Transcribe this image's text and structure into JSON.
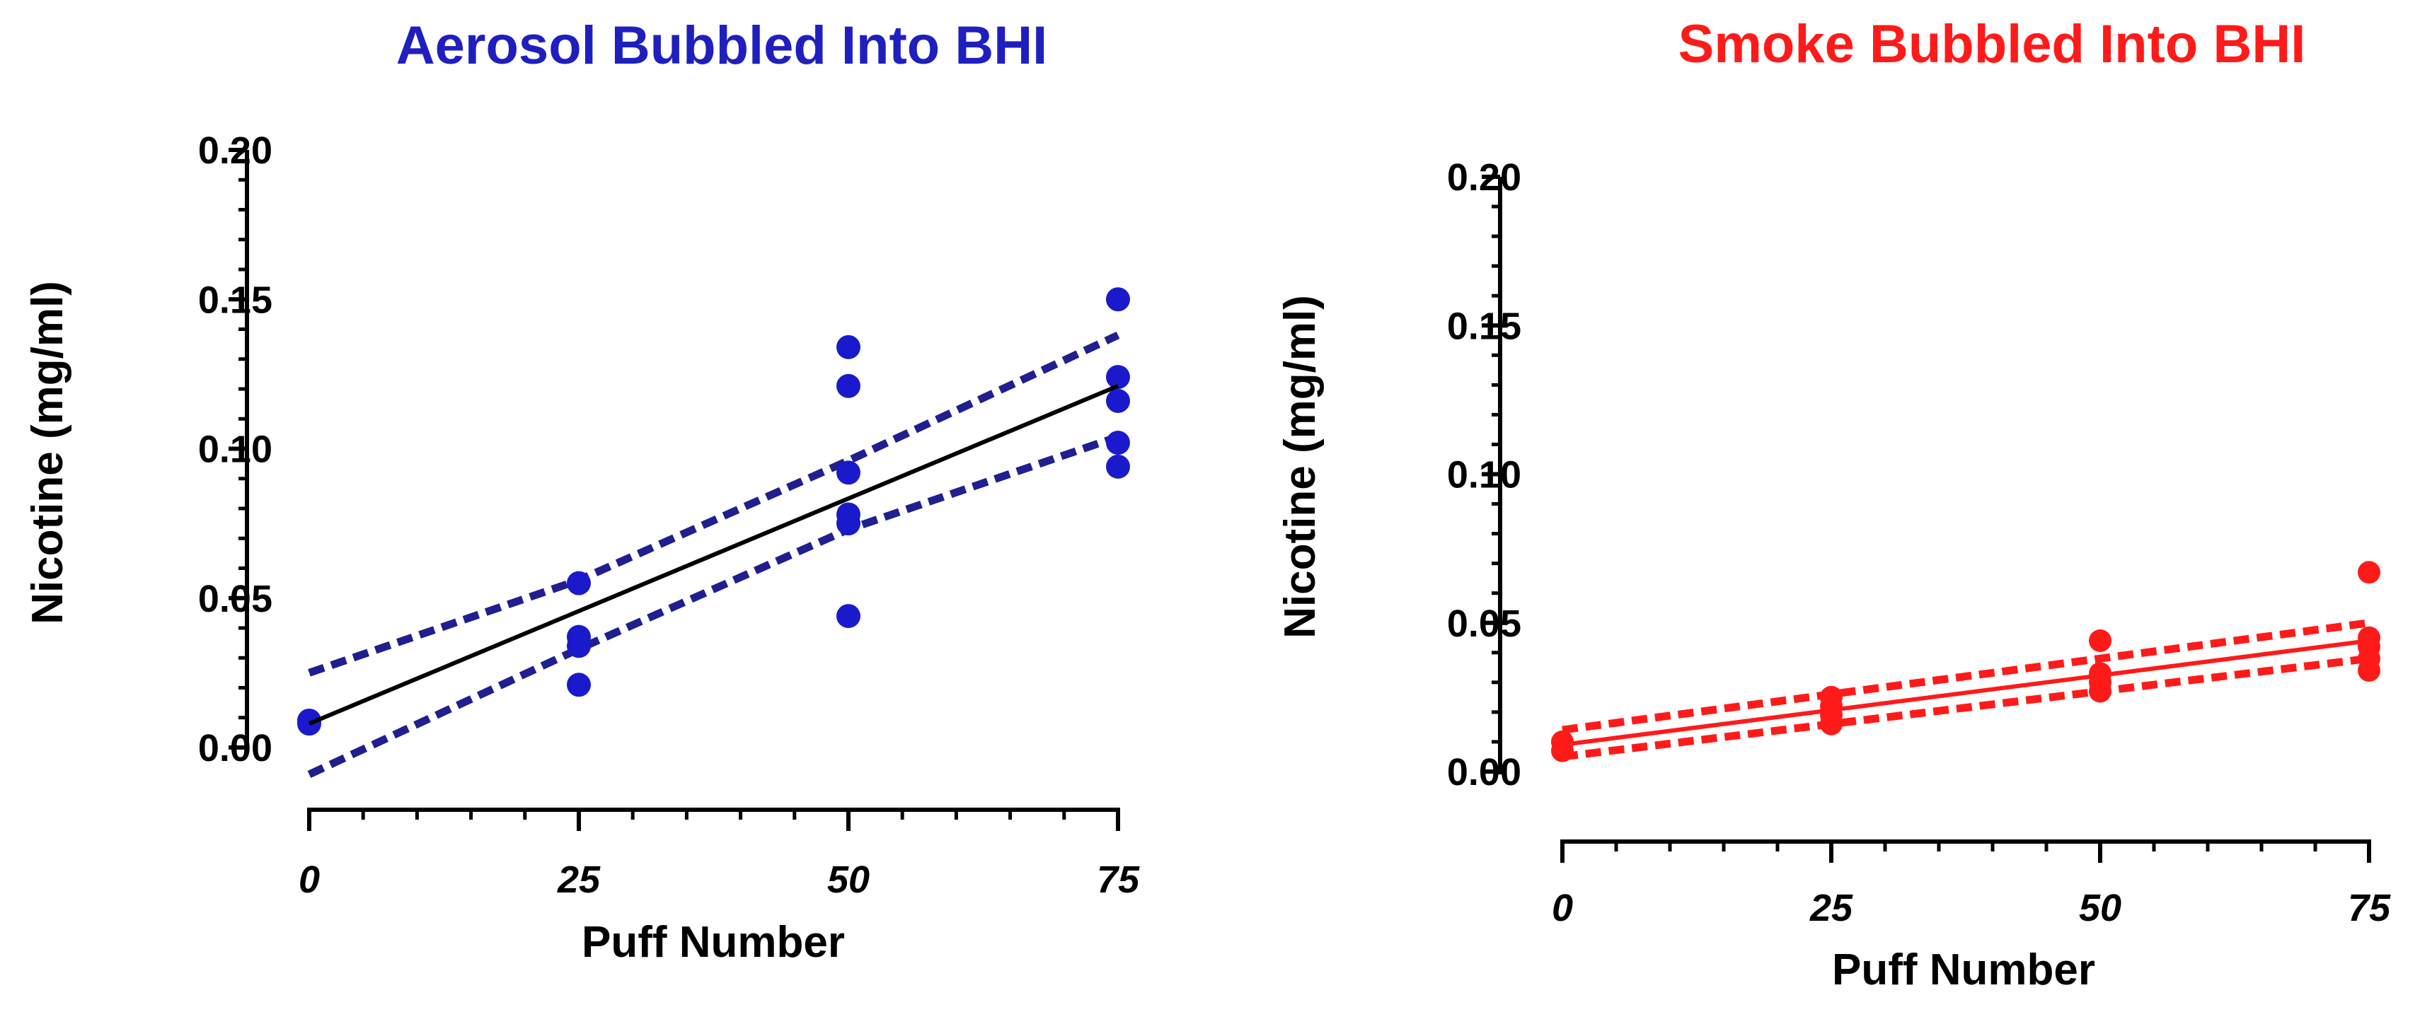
{
  "chart_data": [
    {
      "type": "scatter",
      "title": "Aerosol Bubbled Into BHI",
      "title_color": "#1f1fbf",
      "xlabel": "Puff Number",
      "ylabel": "Nicotine (mg/ml)",
      "xlim": [
        0,
        75
      ],
      "ylim": [
        0,
        0.2
      ],
      "xticks": [
        0,
        25,
        50,
        75
      ],
      "xtick_labels": [
        "0",
        "25",
        "50",
        "75"
      ],
      "yticks": [
        0,
        0.05,
        0.1,
        0.15,
        0.2
      ],
      "ytick_labels": [
        "0.00",
        "0.05",
        "0.10",
        "0.15",
        "0.20"
      ],
      "grid": false,
      "point_color": "#1a1acc",
      "fit_color": "#000000",
      "band_color": "#1f1f8f",
      "points": [
        {
          "x": 0,
          "y": 0.009
        },
        {
          "x": 0,
          "y": 0.008
        },
        {
          "x": 25,
          "y": 0.055
        },
        {
          "x": 25,
          "y": 0.037
        },
        {
          "x": 25,
          "y": 0.034
        },
        {
          "x": 25,
          "y": 0.021
        },
        {
          "x": 50,
          "y": 0.134
        },
        {
          "x": 50,
          "y": 0.121
        },
        {
          "x": 50,
          "y": 0.092
        },
        {
          "x": 50,
          "y": 0.078
        },
        {
          "x": 50,
          "y": 0.075
        },
        {
          "x": 50,
          "y": 0.044
        },
        {
          "x": 75,
          "y": 0.15
        },
        {
          "x": 75,
          "y": 0.124
        },
        {
          "x": 75,
          "y": 0.116
        },
        {
          "x": 75,
          "y": 0.102
        },
        {
          "x": 75,
          "y": 0.094
        }
      ],
      "fit": {
        "x": [
          0,
          75
        ],
        "y": [
          0.008,
          0.121
        ]
      },
      "ci_upper": {
        "x": [
          0,
          25,
          50,
          75
        ],
        "y": [
          0.025,
          0.056,
          0.096,
          0.138
        ]
      },
      "ci_lower": {
        "x": [
          0,
          25,
          50,
          75
        ],
        "y": [
          -0.009,
          0.033,
          0.073,
          0.104
        ]
      }
    },
    {
      "type": "scatter",
      "title": "Smoke Bubbled Into BHI",
      "title_color": "#ff1a1a",
      "xlabel": "Puff Number",
      "ylabel": "Nicotine (mg/ml)",
      "xlim": [
        0,
        75
      ],
      "ylim": [
        0,
        0.2
      ],
      "xticks": [
        0,
        25,
        50,
        75
      ],
      "xtick_labels": [
        "0",
        "25",
        "50",
        "75"
      ],
      "yticks": [
        0,
        0.05,
        0.1,
        0.15,
        0.2
      ],
      "ytick_labels": [
        "0.00",
        "0.05",
        "0.10",
        "0.15",
        "0.20"
      ],
      "grid": false,
      "point_color": "#ff1a1a",
      "fit_color": "#ff1a1a",
      "band_color": "#ff1a1a",
      "points": [
        {
          "x": 0,
          "y": 0.01
        },
        {
          "x": 0,
          "y": 0.007
        },
        {
          "x": 25,
          "y": 0.025
        },
        {
          "x": 25,
          "y": 0.022
        },
        {
          "x": 25,
          "y": 0.019
        },
        {
          "x": 25,
          "y": 0.016
        },
        {
          "x": 50,
          "y": 0.044
        },
        {
          "x": 50,
          "y": 0.033
        },
        {
          "x": 50,
          "y": 0.03
        },
        {
          "x": 50,
          "y": 0.027
        },
        {
          "x": 75,
          "y": 0.067
        },
        {
          "x": 75,
          "y": 0.045
        },
        {
          "x": 75,
          "y": 0.042
        },
        {
          "x": 75,
          "y": 0.038
        },
        {
          "x": 75,
          "y": 0.034
        }
      ],
      "fit": {
        "x": [
          0,
          75
        ],
        "y": [
          0.009,
          0.044
        ]
      },
      "ci_upper": {
        "x": [
          0,
          75
        ],
        "y": [
          0.014,
          0.05
        ]
      },
      "ci_lower": {
        "x": [
          0,
          75
        ],
        "y": [
          0.005,
          0.038
        ]
      }
    }
  ]
}
